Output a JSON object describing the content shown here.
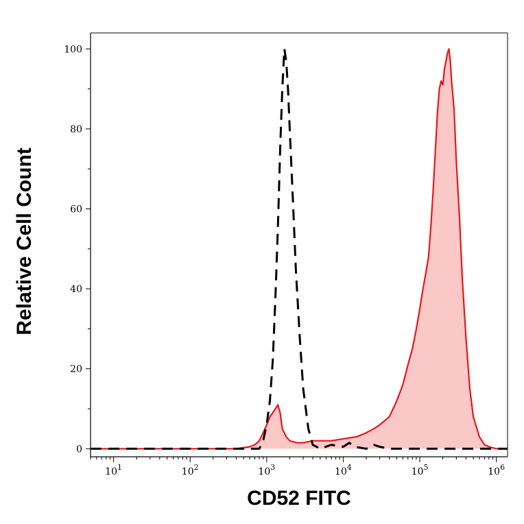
{
  "chart_data": {
    "type": "area",
    "xlabel": "CD52 FITC",
    "ylabel": "Relative Cell Count",
    "x_scale": "log",
    "xlim": [
      5,
      1400000
    ],
    "ylim": [
      -2,
      104
    ],
    "y_ticks": [
      0,
      20,
      40,
      60,
      80,
      100
    ],
    "y_tick_labels": [
      "0",
      "20",
      "40",
      "60",
      "80",
      "100"
    ],
    "x_ticks": [
      {
        "value": 10,
        "base": "10",
        "exp": "1"
      },
      {
        "value": 100,
        "base": "10",
        "exp": "2"
      },
      {
        "value": 1000,
        "base": "10",
        "exp": "3"
      },
      {
        "value": 10000,
        "base": "10",
        "exp": "4"
      },
      {
        "value": 100000,
        "base": "10",
        "exp": "5"
      },
      {
        "value": 1000000,
        "base": "10",
        "exp": "6"
      }
    ],
    "grid": false,
    "legend": "none",
    "series": [
      {
        "style": "filled",
        "color": "#e8161b",
        "fill": "#fbc8c8",
        "points": [
          [
            5,
            0
          ],
          [
            100,
            0
          ],
          [
            400,
            0
          ],
          [
            600,
            0.5
          ],
          [
            700,
            1
          ],
          [
            800,
            2
          ],
          [
            900,
            4
          ],
          [
            1000,
            6
          ],
          [
            1100,
            8
          ],
          [
            1200,
            9
          ],
          [
            1300,
            10
          ],
          [
            1400,
            11
          ],
          [
            1500,
            9
          ],
          [
            1600,
            5
          ],
          [
            1800,
            3
          ],
          [
            2000,
            2
          ],
          [
            2500,
            1.5
          ],
          [
            3000,
            1.5
          ],
          [
            4000,
            2
          ],
          [
            5000,
            2
          ],
          [
            7000,
            2
          ],
          [
            10000,
            2.5
          ],
          [
            15000,
            3
          ],
          [
            20000,
            4
          ],
          [
            25000,
            5
          ],
          [
            30000,
            6
          ],
          [
            40000,
            8
          ],
          [
            50000,
            12
          ],
          [
            60000,
            16
          ],
          [
            70000,
            21
          ],
          [
            80000,
            25
          ],
          [
            90000,
            30
          ],
          [
            100000,
            35
          ],
          [
            110000,
            40
          ],
          [
            120000,
            44
          ],
          [
            130000,
            48
          ],
          [
            140000,
            56
          ],
          [
            150000,
            65
          ],
          [
            160000,
            75
          ],
          [
            170000,
            84
          ],
          [
            180000,
            90
          ],
          [
            190000,
            92
          ],
          [
            200000,
            91
          ],
          [
            210000,
            95
          ],
          [
            220000,
            97
          ],
          [
            230000,
            99
          ],
          [
            240000,
            100
          ],
          [
            250000,
            97
          ],
          [
            260000,
            92
          ],
          [
            280000,
            85
          ],
          [
            300000,
            72
          ],
          [
            330000,
            58
          ],
          [
            360000,
            42
          ],
          [
            400000,
            28
          ],
          [
            450000,
            15
          ],
          [
            500000,
            8
          ],
          [
            600000,
            3
          ],
          [
            700000,
            1
          ],
          [
            800000,
            0.5
          ],
          [
            1000000,
            0
          ],
          [
            1400000,
            0
          ]
        ]
      },
      {
        "style": "dashed",
        "color": "#000000",
        "points": [
          [
            5,
            0
          ],
          [
            500,
            0
          ],
          [
            800,
            0
          ],
          [
            900,
            2
          ],
          [
            1000,
            6
          ],
          [
            1100,
            12
          ],
          [
            1200,
            22
          ],
          [
            1300,
            38
          ],
          [
            1400,
            55
          ],
          [
            1500,
            75
          ],
          [
            1600,
            90
          ],
          [
            1700,
            100
          ],
          [
            1800,
            97
          ],
          [
            1900,
            90
          ],
          [
            2000,
            80
          ],
          [
            2200,
            62
          ],
          [
            2400,
            45
          ],
          [
            2700,
            28
          ],
          [
            3000,
            15
          ],
          [
            3500,
            5
          ],
          [
            4000,
            1
          ],
          [
            5000,
            0
          ],
          [
            7000,
            1
          ],
          [
            10000,
            0.5
          ],
          [
            12000,
            1.5
          ],
          [
            14000,
            0.5
          ],
          [
            20000,
            0
          ],
          [
            25000,
            1
          ],
          [
            30000,
            0.5
          ],
          [
            40000,
            0
          ],
          [
            1400000,
            0
          ]
        ]
      }
    ]
  }
}
